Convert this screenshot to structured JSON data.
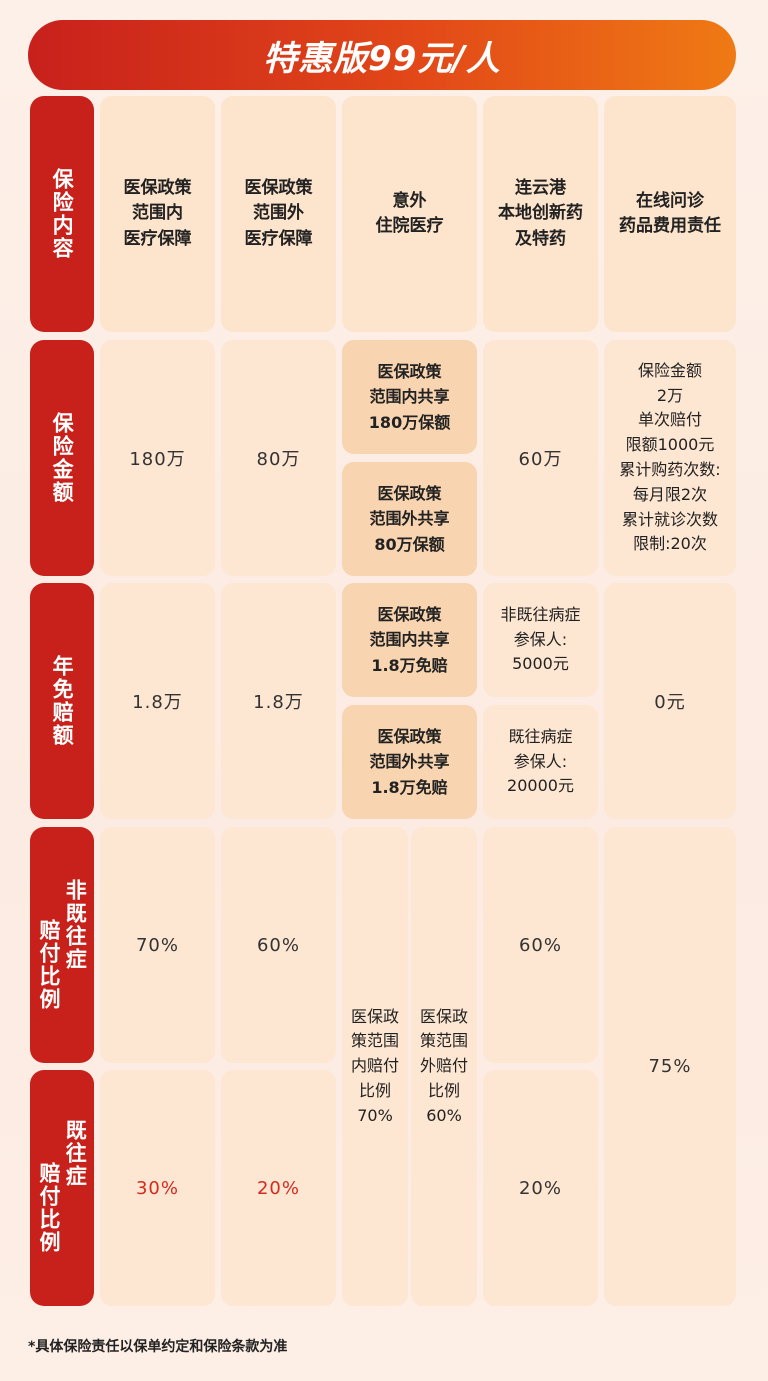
{
  "title": "特惠版99元/人",
  "row_labels": {
    "coverage": "保险内容",
    "amount": "保险金额",
    "deductible": "年免赔额",
    "ratio_a_left": "赔付比例",
    "ratio_a_right": "非既往症",
    "ratio_b_left": "赔付比例",
    "ratio_b_right": "既往症"
  },
  "headers": {
    "col1": "医保政策\n范围内\n医疗保障",
    "col2": "医保政策\n范围外\n医疗保障",
    "col3": "意外\n住院医疗",
    "col4": "连云港\n本地创新药\n及特药",
    "col5": "在线问诊\n药品费用责任"
  },
  "amount": {
    "col1": "180万",
    "col2": "80万",
    "col3_top": "医保政策\n范围内共享\n180万保额",
    "col3_bottom": "医保政策\n范围外共享\n80万保额",
    "col4": "60万",
    "col5": "保险金额\n2万\n单次赔付\n限额1000元\n累计购药次数:\n每月限2次\n累计就诊次数\n限制:20次"
  },
  "deductible": {
    "col1": "1.8万",
    "col2": "1.8万",
    "col3_top": "医保政策\n范围内共享\n1.8万免赔",
    "col3_bottom": "医保政策\n范围外共享\n1.8万免赔",
    "col4_top": "非既往病症\n参保人:\n5000元",
    "col4_bottom": "既往病症\n参保人:\n20000元",
    "col5": "0元"
  },
  "ratio_non_preexisting": {
    "col1": "70%",
    "col2": "60%",
    "col4": "60%"
  },
  "ratio_preexisting": {
    "col1": "30%",
    "col2": "20%",
    "col4": "20%"
  },
  "ratio_shared": {
    "col3_left": "医保政\n策范围\n内赔付\n比例\n70%",
    "col3_right": "医保政\n策范围\n外赔付\n比例\n60%",
    "col5": "75%"
  },
  "footnote": "*具体保险责任以保单约定和保险条款为准",
  "colors": {
    "brand_red": "#c8201a",
    "orange": "#ef7a14",
    "cell": "#fde4cc",
    "red_text": "#d42a1e"
  }
}
